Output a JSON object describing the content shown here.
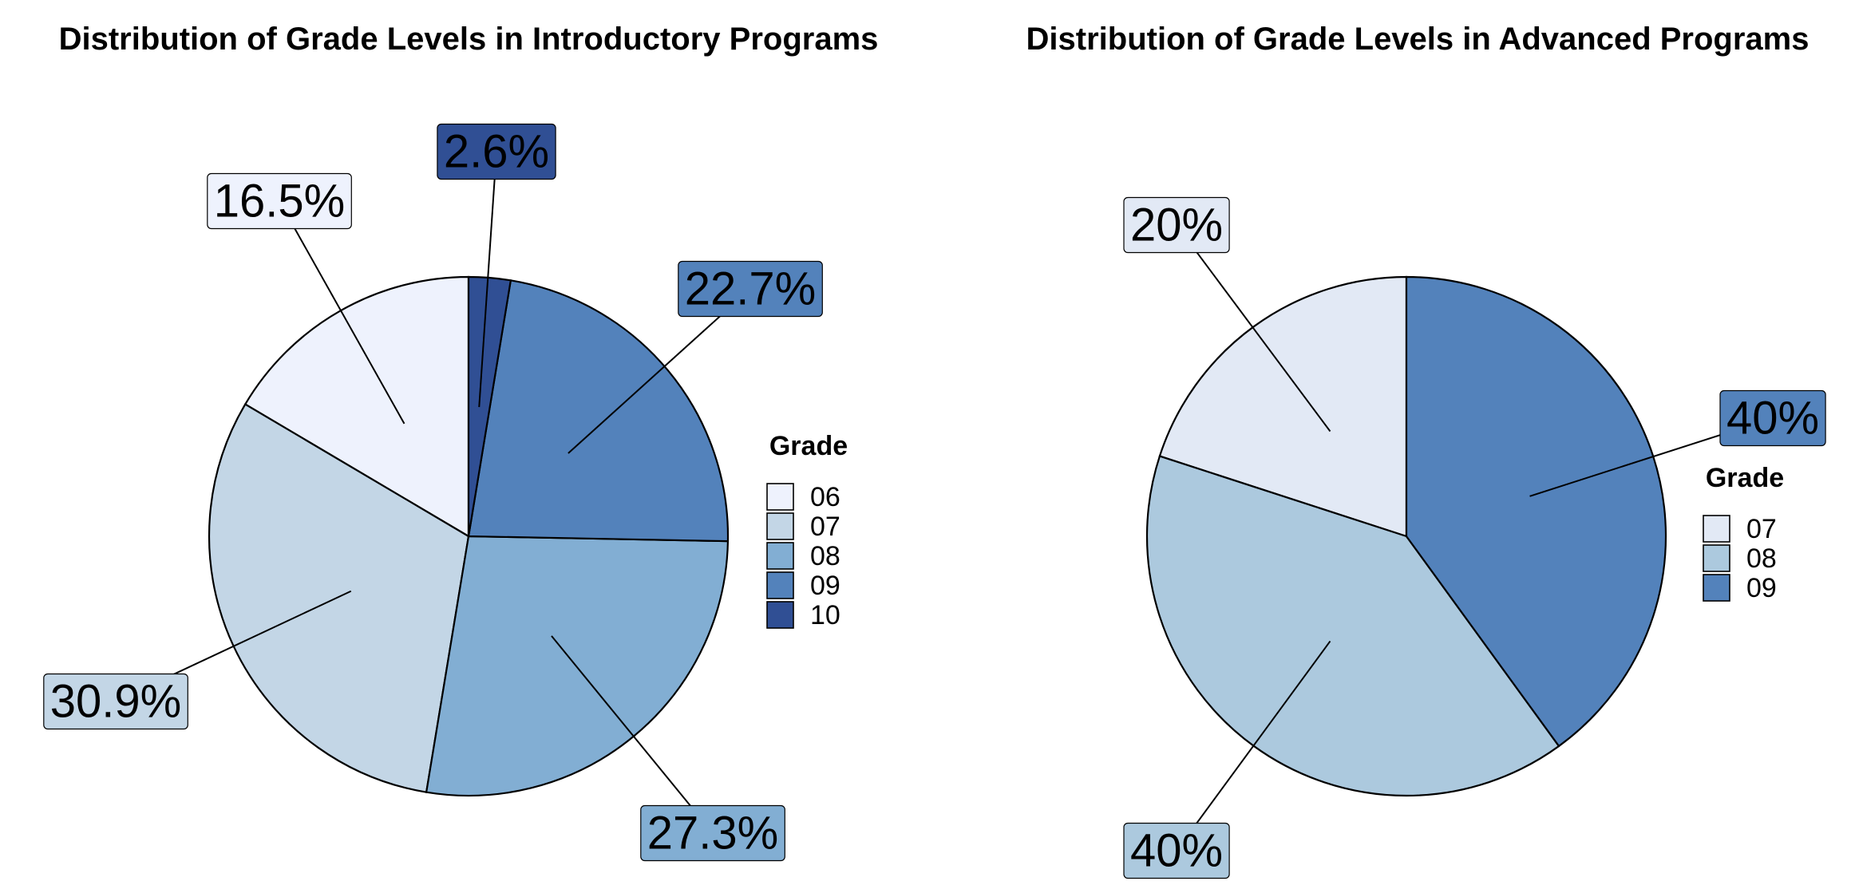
{
  "chart_data": [
    {
      "type": "pie",
      "title": "Distribution of Grade Levels in Introductory Programs",
      "legend_title": "Grade",
      "legend_position": "right",
      "slices": [
        {
          "label": "06",
          "value": 16.5,
          "display": "16.5%",
          "color": "#eef2fd"
        },
        {
          "label": "07",
          "value": 30.9,
          "display": "30.9%",
          "color": "#c3d6e6"
        },
        {
          "label": "08",
          "value": 27.3,
          "display": "27.3%",
          "color": "#82aed3"
        },
        {
          "label": "09",
          "value": 22.7,
          "display": "22.7%",
          "color": "#5382bb"
        },
        {
          "label": "10",
          "value": 2.6,
          "display": "2.6%",
          "color": "#304f94"
        }
      ]
    },
    {
      "type": "pie",
      "title": "Distribution of Grade Levels in Advanced Programs",
      "legend_title": "Grade",
      "legend_position": "right",
      "slices": [
        {
          "label": "07",
          "value": 20,
          "display": "20%",
          "color": "#e2e9f5"
        },
        {
          "label": "08",
          "value": 40,
          "display": "40%",
          "color": "#acc9de"
        },
        {
          "label": "09",
          "value": 40,
          "display": "40%",
          "color": "#5382bb"
        }
      ]
    }
  ]
}
